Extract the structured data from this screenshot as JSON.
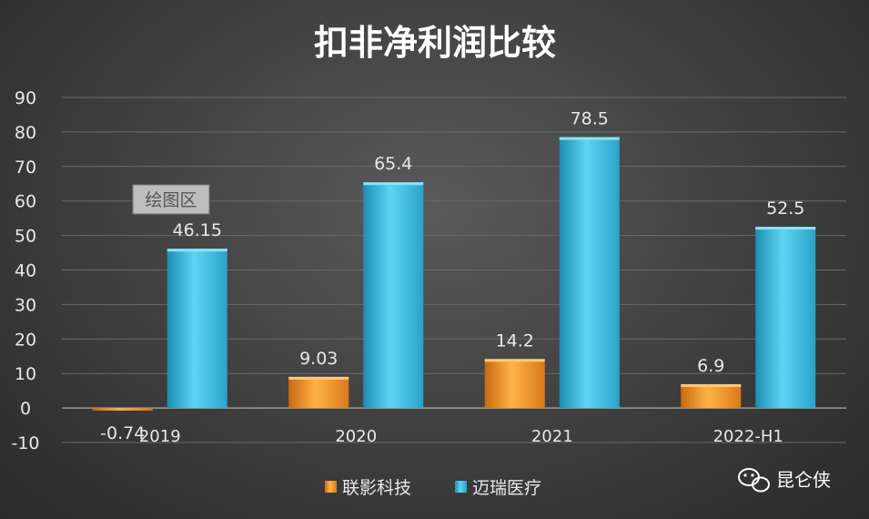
{
  "chart_data": {
    "type": "bar",
    "title": "扣非净利润比较",
    "categories": [
      "2019",
      "2020",
      "2021",
      "2022-H1"
    ],
    "series": [
      {
        "name": "联影科技",
        "color": "#f39a2a",
        "values": [
          -0.74,
          9.03,
          14.2,
          6.9
        ],
        "labels": [
          "-0.74",
          "9.03",
          "14.2",
          "6.9"
        ]
      },
      {
        "name": "迈瑞医疗",
        "color": "#3fbde0",
        "values": [
          46.15,
          65.4,
          78.5,
          52.5
        ],
        "labels": [
          "46.15",
          "65.4",
          "78.5",
          "52.5"
        ]
      }
    ],
    "ylim": [
      -10,
      90
    ],
    "yticks": [
      "-10",
      "0",
      "10",
      "20",
      "30",
      "40",
      "50",
      "60",
      "70",
      "80",
      "90"
    ],
    "grid": true,
    "legend": "bottom"
  },
  "tooltip": "绘图区",
  "watermark": {
    "text": "昆仑侠",
    "icon": "wechat-icon"
  }
}
